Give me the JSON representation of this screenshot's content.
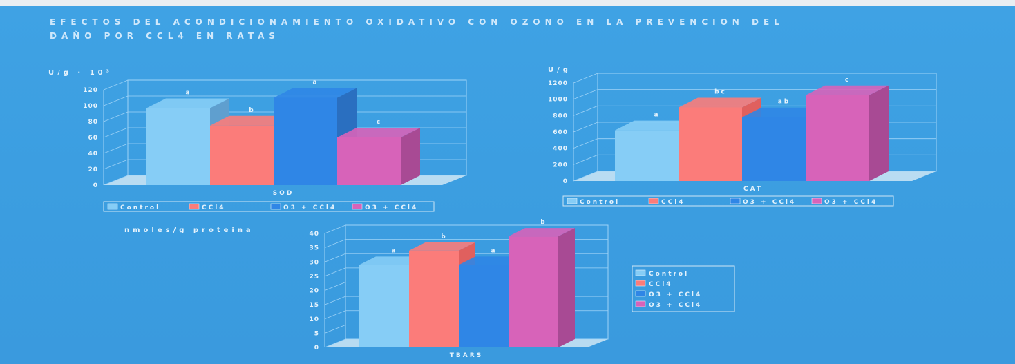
{
  "title": {
    "line1": "EFECTOS DEL ACONDICIONAMIENTO OXIDATIVO CON OZONO EN LA PREVENCION DEL",
    "line2": "DAÑO POR CCL4 EN RATAS"
  },
  "colors": {
    "background": "#3b9de0",
    "Control": "#86cdf6",
    "CCl4": "#fb7c7a",
    "O3+CCl4": "#2f86e6",
    "O3+CCl4 (2)": "#d763b9"
  },
  "chart_data": [
    {
      "type": "bar",
      "style": "3d",
      "ylabel": "U/g · 10³",
      "xlabel": "SOD",
      "ylim": [
        0,
        120
      ],
      "yticks": [
        "0",
        "20",
        "40",
        "60",
        "80",
        "100",
        "120"
      ],
      "grid": true,
      "legend_placement": "bottom",
      "series": [
        {
          "name": "Control",
          "value": 97,
          "letter": "a"
        },
        {
          "name": "CCl4",
          "value": 75,
          "letter": "b"
        },
        {
          "name": "O3 + CCl4",
          "value": 110,
          "letter": "a"
        },
        {
          "name": "O3 + CCl4",
          "value": 60,
          "letter": "c"
        }
      ]
    },
    {
      "type": "bar",
      "style": "3d",
      "ylabel": "U/g",
      "xlabel": "CAT",
      "ylim": [
        0,
        1200
      ],
      "yticks": [
        "0",
        "200",
        "400",
        "600",
        "800",
        "1000",
        "1200"
      ],
      "grid": true,
      "legend_placement": "bottom",
      "series": [
        {
          "name": "Control",
          "value": 620,
          "letter": "a"
        },
        {
          "name": "CCl4",
          "value": 900,
          "letter": "bc"
        },
        {
          "name": "O3 + CCl4",
          "value": 780,
          "letter": "ab"
        },
        {
          "name": "O3 + CCl4",
          "value": 1050,
          "letter": "c"
        }
      ]
    },
    {
      "type": "bar",
      "style": "3d",
      "ylabel": "nmoles/g proteina",
      "xlabel": "TBARS",
      "ylim": [
        0,
        40
      ],
      "yticks": [
        "0",
        "5",
        "10",
        "15",
        "20",
        "25",
        "30",
        "35",
        "40"
      ],
      "grid": true,
      "legend_placement": "right",
      "series": [
        {
          "name": "Control",
          "value": 29,
          "letter": "a"
        },
        {
          "name": "CCl4",
          "value": 34,
          "letter": "b"
        },
        {
          "name": "O3 + CCl4",
          "value": 29,
          "letter": "a"
        },
        {
          "name": "O3 + CCl4",
          "value": 39,
          "letter": "b"
        }
      ]
    }
  ]
}
